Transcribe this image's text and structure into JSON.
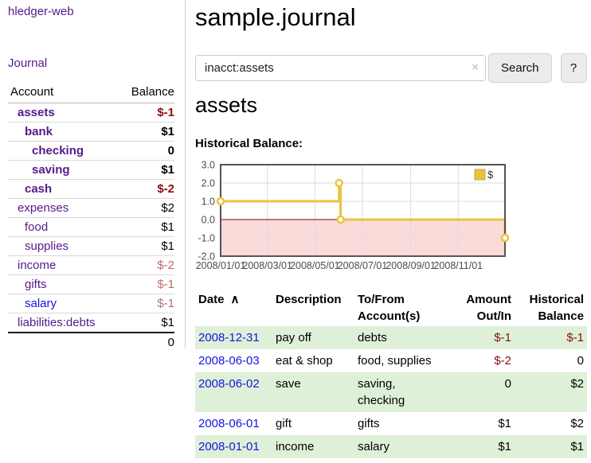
{
  "app": {
    "brand": "hledger-web",
    "nav_journal": "Journal"
  },
  "sidebar": {
    "headers": {
      "account": "Account",
      "balance": "Balance"
    },
    "accounts": [
      {
        "name": "assets",
        "balance": "$-1",
        "level": 1,
        "bold": true,
        "balance_style": "neg-strong"
      },
      {
        "name": "bank",
        "balance": "$1",
        "level": 2,
        "bold": true,
        "balance_style": "plain"
      },
      {
        "name": "checking",
        "balance": "0",
        "level": 3,
        "bold": true,
        "balance_style": "plain"
      },
      {
        "name": "saving",
        "balance": "$1",
        "level": 3,
        "bold": true,
        "balance_style": "plain"
      },
      {
        "name": "cash",
        "balance": "$-2",
        "level": 2,
        "bold": true,
        "balance_style": "neg-strong"
      },
      {
        "name": "expenses",
        "balance": "$2",
        "level": 1,
        "bold": false,
        "balance_style": "plain"
      },
      {
        "name": "food",
        "balance": "$1",
        "level": 2,
        "bold": false,
        "balance_style": "plain"
      },
      {
        "name": "supplies",
        "balance": "$1",
        "level": 2,
        "bold": false,
        "balance_style": "plain"
      },
      {
        "name": "income",
        "balance": "$-2",
        "level": 1,
        "bold": false,
        "balance_style": "neg-soft"
      },
      {
        "name": "gifts",
        "balance": "$-1",
        "level": 2,
        "bold": false,
        "balance_style": "neg-soft"
      },
      {
        "name": "salary",
        "balance": "$-1",
        "level": 2,
        "bold": false,
        "balance_style": "neg-soft",
        "link_style": "blue"
      },
      {
        "name": "liabilities:debts",
        "balance": "$1",
        "level": 1,
        "bold": false,
        "balance_style": "plain"
      }
    ],
    "total": "0"
  },
  "header": {
    "title": "sample.journal"
  },
  "search": {
    "value": "inacct:assets",
    "clear_icon": "×",
    "button_label": "Search",
    "help_label": "?"
  },
  "account_page": {
    "heading": "assets",
    "chart_label": "Historical Balance:"
  },
  "chart_data": {
    "type": "line",
    "title": "Historical Balance",
    "step": true,
    "grid": true,
    "legend_position": "top-right",
    "ylim": [
      -2,
      3
    ],
    "yticks": [
      "3.0",
      "2.0",
      "1.0",
      "0.0",
      "-1.0",
      "-2.0"
    ],
    "x_range": [
      "2008-01-01",
      "2008-12-31"
    ],
    "xticks": [
      "2008/01/01",
      "2008/03/01",
      "2008/05/01",
      "2008/07/01",
      "2008/09/01",
      "2008/11/01"
    ],
    "series": [
      {
        "name": "$",
        "points": [
          {
            "date": "2008-01-01",
            "value": 1
          },
          {
            "date": "2008-06-01",
            "value": 2
          },
          {
            "date": "2008-06-03",
            "value": 0
          },
          {
            "date": "2008-12-31",
            "value": -1
          }
        ]
      }
    ]
  },
  "register": {
    "headers": {
      "date": "Date",
      "sort_icon": "∧",
      "description": "Description",
      "account_line1": "To/From",
      "account_line2": "Account(s)",
      "amount_line1": "Amount",
      "amount_line2": "Out/In",
      "balance_line1": "Historical",
      "balance_line2": "Balance"
    },
    "rows": [
      {
        "date": "2008-12-31",
        "description": "pay off",
        "accounts": "debts",
        "amount": "$-1",
        "amount_neg": true,
        "balance": "$-1",
        "balance_neg": true,
        "shaded": true
      },
      {
        "date": "2008-06-03",
        "description": "eat & shop",
        "accounts": "food, supplies",
        "amount": "$-2",
        "amount_neg": true,
        "balance": "0",
        "balance_neg": false,
        "shaded": false
      },
      {
        "date": "2008-06-02",
        "description": "save",
        "accounts": "saving, checking",
        "amount": "0",
        "amount_neg": false,
        "balance": "$2",
        "balance_neg": false,
        "shaded": true
      },
      {
        "date": "2008-06-01",
        "description": "gift",
        "accounts": "gifts",
        "amount": "$1",
        "amount_neg": false,
        "balance": "$2",
        "balance_neg": false,
        "shaded": false
      },
      {
        "date": "2008-01-01",
        "description": "income",
        "accounts": "salary",
        "amount": "$1",
        "amount_neg": false,
        "balance": "$1",
        "balance_neg": false,
        "shaded": true
      }
    ]
  },
  "colors": {
    "brand_purple": "#551a8b",
    "link_blue": "#1414e0",
    "negative_strong": "#8b0e0e",
    "negative_soft": "#bd6b6b",
    "row_stripe_green": "#dff0d8",
    "chart": {
      "line": "#e9c340",
      "marker_fill": "#ffffff",
      "negative_fill": "#fbdada",
      "zero_line": "#8b0000",
      "grid": "#dcdcdc",
      "border": "#545454",
      "tick_text": "#4c4c4c",
      "legend_box_fill": "#e9c340",
      "legend_box_border": "#c9a42e"
    }
  }
}
